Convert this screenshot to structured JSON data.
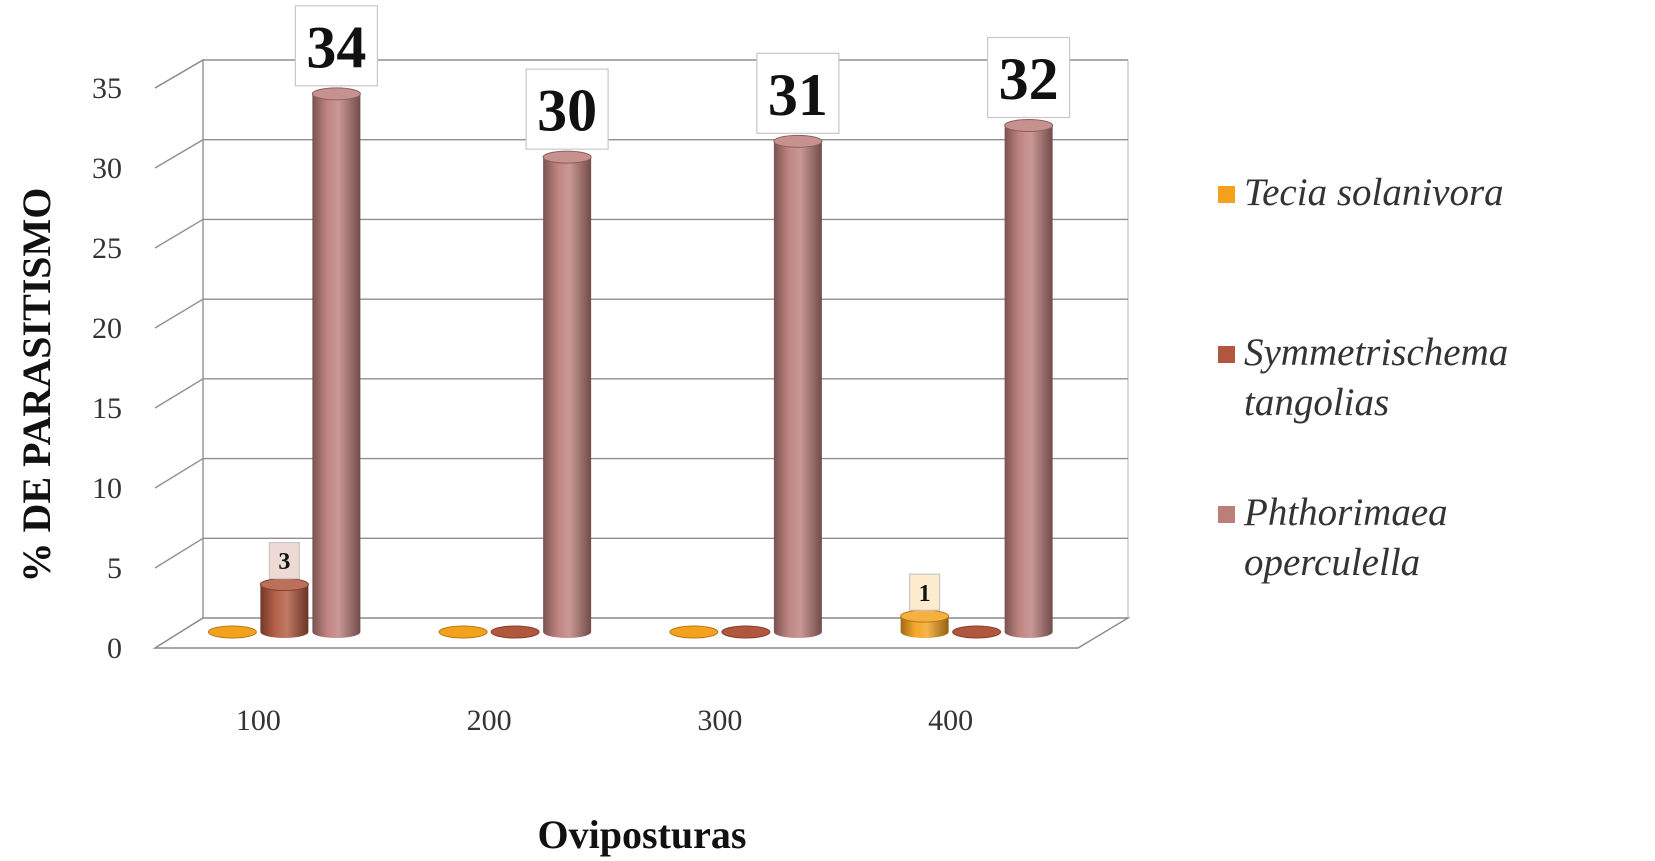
{
  "chart_data": {
    "type": "bar",
    "style": "3d-cylinder",
    "categories": [
      "100",
      "200",
      "300",
      "400"
    ],
    "series": [
      {
        "name": "Tecia solanivora",
        "values": [
          0,
          0,
          0,
          1
        ],
        "color": "#F4A21E",
        "data_labels": [
          null,
          null,
          null,
          "1"
        ]
      },
      {
        "name": "Symmetrischema tangolias",
        "values": [
          3,
          0,
          0,
          0
        ],
        "color": "#B0573E",
        "data_labels": [
          "3",
          null,
          null,
          null
        ]
      },
      {
        "name": "Phthorimaea operculella",
        "values": [
          34,
          30,
          31,
          32
        ],
        "color": "#BC7E7A",
        "data_labels": [
          "34",
          "30",
          "31",
          "32"
        ]
      }
    ],
    "legend": [
      {
        "lines": [
          "Tecia solanivora"
        ],
        "color": "#F4A21E"
      },
      {
        "lines": [
          "Symmetrischema",
          "tangolias"
        ],
        "color": "#B0573E"
      },
      {
        "lines": [
          "Phthorimaea",
          "operculella"
        ],
        "color": "#BC7E7A"
      }
    ],
    "xlabel": "Oviposturas",
    "ylabel": "% DE PARASITISMO",
    "ylim": [
      0,
      35
    ],
    "yticks": [
      "0",
      "5",
      "10",
      "15",
      "20",
      "25",
      "30",
      "35"
    ],
    "grid": true,
    "legend_position": "right"
  }
}
